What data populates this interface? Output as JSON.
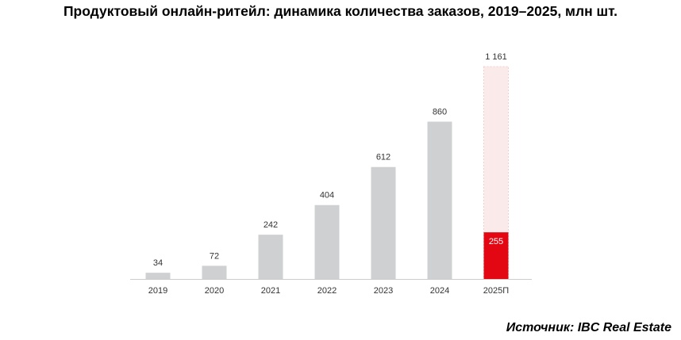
{
  "title": "Продуктовый онлайн-ритейл: динамика количества заказов, 2019–2025, млн шт.",
  "source": "Источник: IBC Real Estate",
  "colors": {
    "bar": "#cfd0d2",
    "forecast_fill": "#fbeaea",
    "forecast_border": "#f3c4c4",
    "highlight": "#e30613",
    "axis": "#cccccc"
  },
  "chart_data": {
    "type": "bar",
    "categories": [
      "2019",
      "2020",
      "2021",
      "2022",
      "2023",
      "2024",
      "2025П"
    ],
    "series": [
      {
        "values": [
          34,
          72,
          242,
          404,
          612,
          860,
          1161
        ]
      }
    ],
    "value_labels": [
      "34",
      "72",
      "242",
      "404",
      "612",
      "860",
      "1 161"
    ],
    "highlight": {
      "category": "2025П",
      "value": 255,
      "label": "255"
    },
    "ylim": [
      0,
      1161
    ],
    "grid": false,
    "legend": "none"
  }
}
